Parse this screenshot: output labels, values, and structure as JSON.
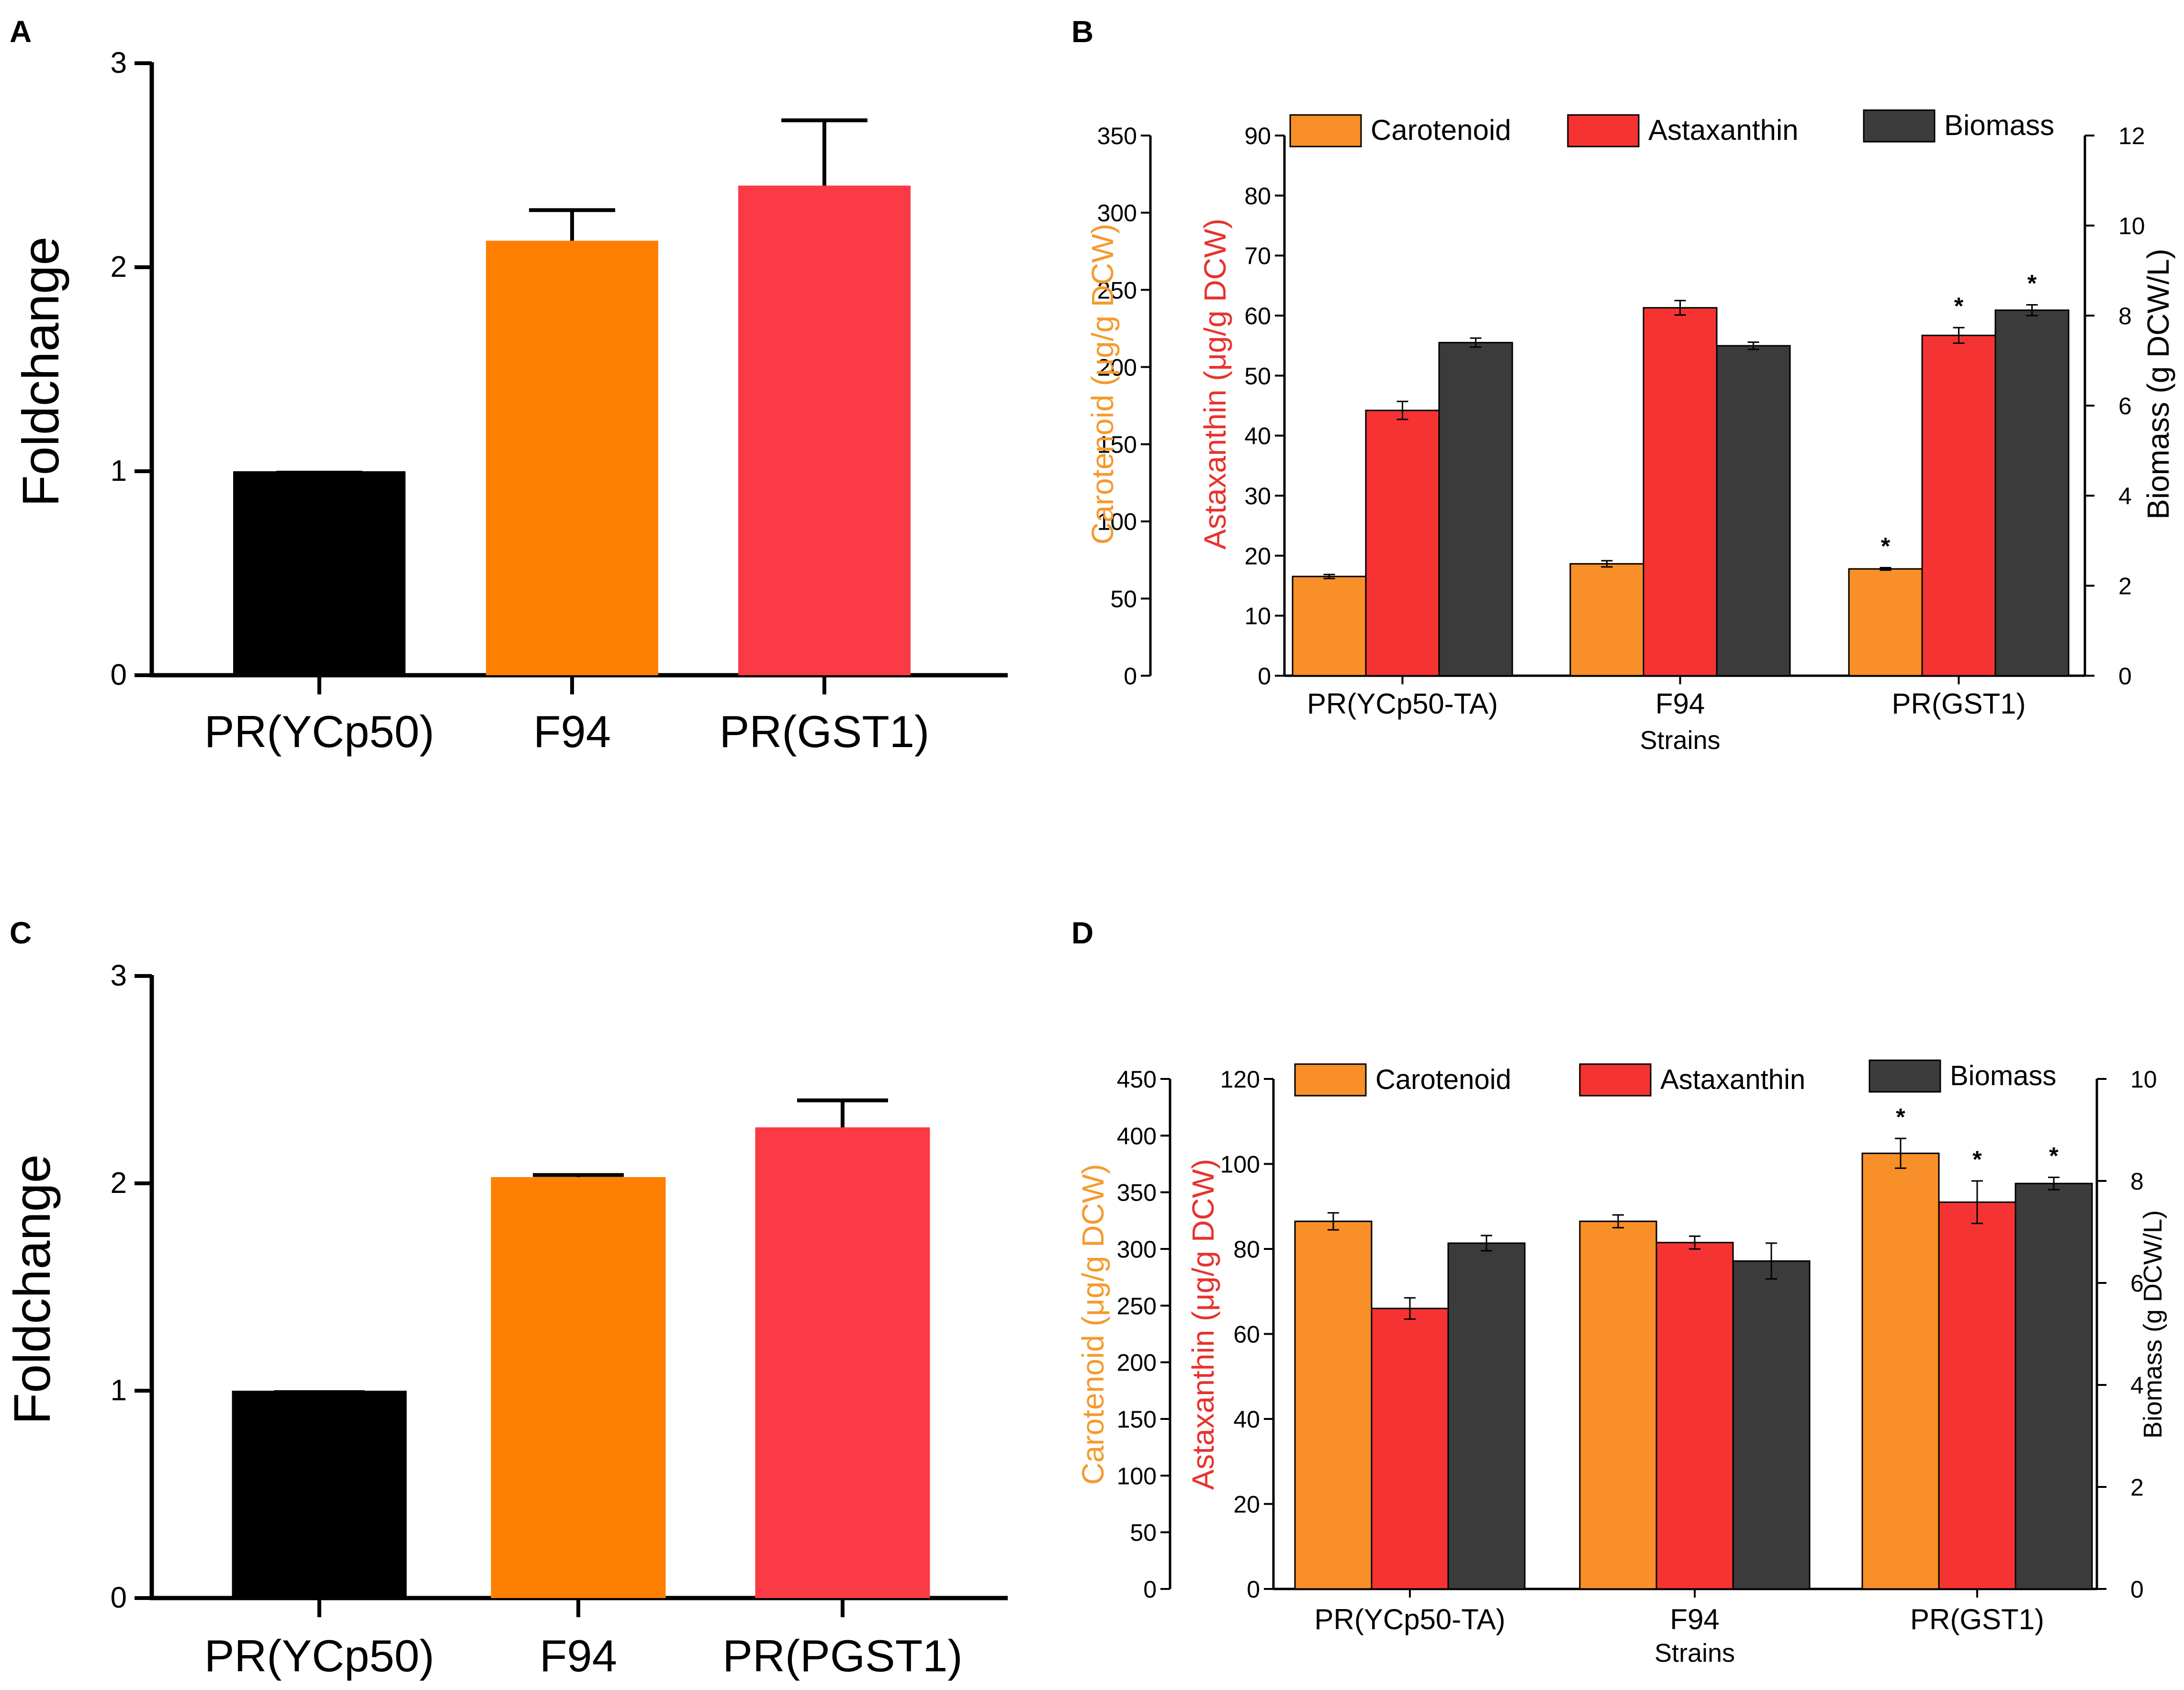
{
  "chart_data": [
    {
      "panel": "A",
      "type": "bar",
      "ylabel": "Foldchange",
      "ylim": [
        0,
        3
      ],
      "yticks": [
        "0",
        "1",
        "2",
        "3"
      ],
      "categories": [
        "PR(YCp50)",
        "F94",
        "PR(GST1)"
      ],
      "values": [
        1.0,
        2.13,
        2.4
      ],
      "errors": [
        0,
        0.15,
        0.32
      ],
      "colors": [
        "#000000",
        "#ff8000",
        "#fa3a44"
      ]
    },
    {
      "panel": "B",
      "type": "bar",
      "xlabel": "Strains",
      "categories": [
        "PR(YCp50-TA)",
        "F94",
        "PR(GST1)"
      ],
      "legend": [
        "Carotenoid",
        "Astaxanthin",
        "Biomass"
      ],
      "colors": {
        "carotenoid": "#f88f28",
        "astaxanthin": "#f63333",
        "biomass": "#3b3b3b",
        "orange_label": "#f49a2e",
        "red_label": "#e8322d"
      },
      "axes": {
        "carotenoid": {
          "label": "Carotenoid (μg/g DCW)",
          "ylim": [
            0,
            350
          ],
          "ticks": [
            "0",
            "50",
            "100",
            "150",
            "200",
            "250",
            "300",
            "350"
          ]
        },
        "astaxanthin": {
          "label": "Astaxanthin (μg/g DCW)",
          "ylim": [
            0,
            90
          ],
          "ticks": [
            "0",
            "10",
            "20",
            "30",
            "40",
            "50",
            "60",
            "70",
            "80",
            "90"
          ]
        },
        "biomass": {
          "label": "Biomass (g DCW/L)",
          "ylim": [
            0,
            12
          ],
          "ticks": [
            "0",
            "2",
            "4",
            "6",
            "8",
            "10",
            "12"
          ]
        }
      },
      "series": [
        {
          "name": "Carotenoid",
          "axis": "carotenoid",
          "values": [
            64.3,
            72.5,
            69.2
          ],
          "errors": [
            1.3,
            2.0,
            0.8
          ],
          "sig": [
            "",
            "",
            "*"
          ]
        },
        {
          "name": "Astaxanthin",
          "axis": "astaxanthin",
          "values": [
            44.2,
            61.3,
            56.7
          ],
          "errors": [
            1.5,
            1.2,
            1.3
          ],
          "sig": [
            "",
            "",
            "*"
          ]
        },
        {
          "name": "Biomass",
          "axis": "biomass",
          "values": [
            7.4,
            7.33,
            8.12
          ],
          "errors": [
            0.1,
            0.08,
            0.12
          ],
          "sig": [
            "",
            "",
            "*"
          ]
        }
      ]
    },
    {
      "panel": "C",
      "type": "bar",
      "ylabel": "Foldchange",
      "ylim": [
        0,
        3
      ],
      "yticks": [
        "0",
        "1",
        "2",
        "3"
      ],
      "categories": [
        "PR(YCp50)",
        "F94",
        "PR(PGST1)"
      ],
      "values": [
        1.0,
        2.03,
        2.27
      ],
      "errors": [
        0,
        0.01,
        0.13
      ],
      "colors": [
        "#000000",
        "#ff8000",
        "#fa3a44"
      ]
    },
    {
      "panel": "D",
      "type": "bar",
      "xlabel": "Strains",
      "categories": [
        "PR(YCp50-TA)",
        "F94",
        "PR(GST1)"
      ],
      "legend": [
        "Carotenoid",
        "Astaxanthin",
        "Biomass"
      ],
      "colors": {
        "carotenoid": "#f88f28",
        "astaxanthin": "#f63333",
        "biomass": "#3b3b3b",
        "orange_label": "#f49a2e",
        "red_label": "#e8322d"
      },
      "axes": {
        "carotenoid": {
          "label": "Carotenoid (μg/g DCW)",
          "ylim": [
            0,
            450
          ],
          "ticks": [
            "0",
            "50",
            "100",
            "150",
            "200",
            "250",
            "300",
            "350",
            "400",
            "450"
          ]
        },
        "astaxanthin": {
          "label": "Astaxanthin (μg/g DCW)",
          "ylim": [
            0,
            120
          ],
          "ticks": [
            "0",
            "20",
            "40",
            "60",
            "80",
            "100",
            "120"
          ]
        },
        "biomass": {
          "label": "Biomass (g DCW/L)",
          "ylim": [
            0,
            10
          ],
          "ticks": [
            "0",
            "2",
            "4",
            "6",
            "8",
            "10"
          ]
        }
      },
      "series": [
        {
          "name": "Carotenoid",
          "axis": "astaxanthin",
          "values": [
            86.5,
            86.5,
            102.5
          ],
          "errors": [
            2.0,
            1.5,
            3.5
          ],
          "sig": [
            "",
            "",
            "*"
          ]
        },
        {
          "name": "Astaxanthin",
          "axis": "astaxanthin",
          "values": [
            66.0,
            81.5,
            91.0
          ],
          "errors": [
            2.5,
            1.5,
            5.0
          ],
          "sig": [
            "",
            "",
            "*"
          ]
        },
        {
          "name": "Biomass",
          "axis": "biomass",
          "values": [
            6.78,
            6.43,
            7.95
          ],
          "errors": [
            0.15,
            0.35,
            0.12
          ],
          "sig": [
            "",
            "",
            "*"
          ]
        }
      ]
    }
  ],
  "panel_letters": [
    "A",
    "B",
    "C",
    "D"
  ]
}
